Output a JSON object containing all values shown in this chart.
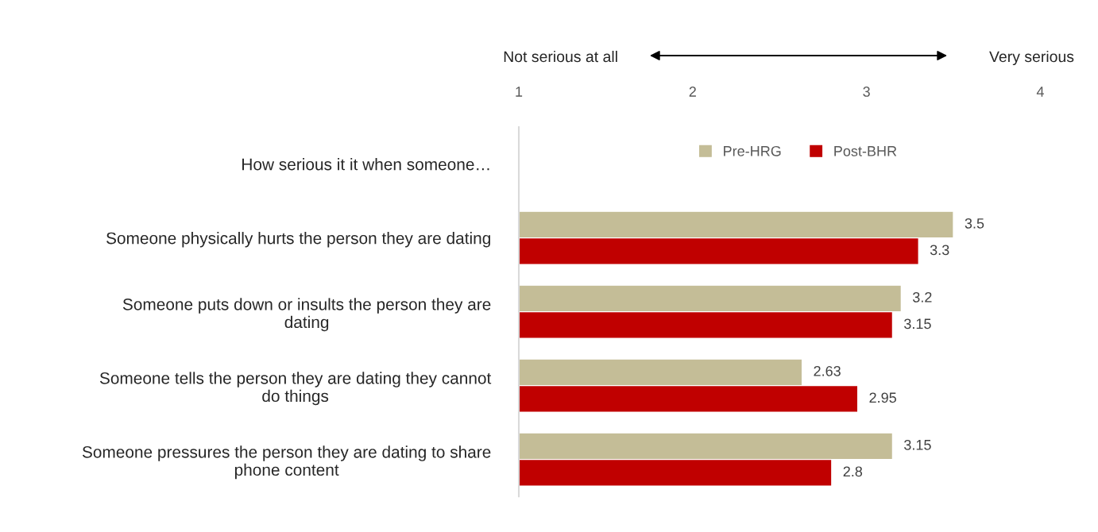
{
  "chart_data": {
    "type": "bar",
    "orientation": "horizontal",
    "categories": [
      "How serious it it when someone…",
      "Someone physically hurts the person they are dating",
      "Someone puts down or insults the person they are\ndating",
      "Someone tells the person they are dating they cannot\ndo things",
      "Someone pressures the person they are dating to share\nphone content"
    ],
    "series": [
      {
        "name": "Pre-HRG",
        "color": "#c4bd97",
        "values": [
          null,
          3.5,
          3.2,
          2.63,
          3.15
        ],
        "value_labels": [
          null,
          "3.5",
          "3.2",
          "2.63",
          "3.15"
        ]
      },
      {
        "name": "Post-BHR",
        "color": "#c00000",
        "values": [
          null,
          3.3,
          3.15,
          2.95,
          2.8
        ],
        "value_labels": [
          null,
          "3.3",
          "3.15",
          "2.95",
          "2.8"
        ]
      }
    ],
    "xlim": [
      1,
      4
    ],
    "xticks": [
      1,
      2,
      3,
      4
    ],
    "annotations": [
      "Not serious at all",
      "Very serious"
    ],
    "legend": "top right",
    "grid": false
  }
}
